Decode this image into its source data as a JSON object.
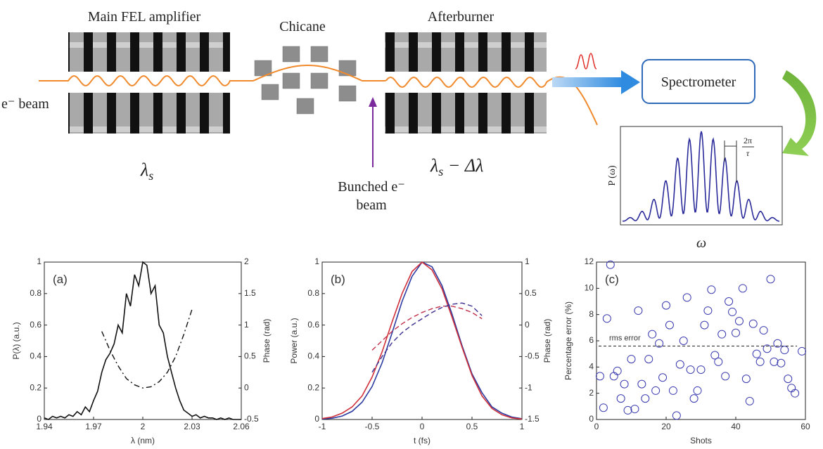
{
  "diagram": {
    "main_fel": "Main FEL amplifier",
    "chicane": "Chicane",
    "afterburner": "Afterburner",
    "e_beam": "e⁻ beam",
    "lambda_main": {
      "symbol": "λ",
      "subscript": "s"
    },
    "lambda_after": {
      "symbol": "λ",
      "subscript": "s",
      "suffix": " − Δλ"
    },
    "bunched": [
      "Bunched e⁻",
      "beam"
    ],
    "spectrometer": "Spectrometer",
    "inset_ylabel": "P (ω)",
    "inset_xlabel": "ω",
    "spacing": {
      "numerator": "2π",
      "denominator": "τ"
    }
  },
  "chart_data": [
    {
      "type": "line",
      "panel_label": "(a)",
      "xlabel": "λ (nm)",
      "ylabel": "P(λ) (a.u.)",
      "y2label": "Phase (rad)",
      "xlim": [
        1.94,
        2.06
      ],
      "xticks": [
        1.94,
        1.97,
        2,
        2.03,
        2.06
      ],
      "ylim": [
        0,
        1
      ],
      "yticks": [
        0,
        0.2,
        0.4,
        0.6,
        0.8,
        1
      ],
      "y2lim": [
        -0.5,
        2
      ],
      "y2ticks": [
        -0.5,
        0,
        0.5,
        1,
        1.5,
        2
      ],
      "series": [
        {
          "color": "#111111",
          "style": "solid",
          "x": [
            1.94,
            1.9425,
            1.945,
            1.9475,
            1.95,
            1.9525,
            1.955,
            1.9575,
            1.96,
            1.9625,
            1.965,
            1.9675,
            1.97,
            1.9725,
            1.975,
            1.9775,
            1.98,
            1.9825,
            1.985,
            1.9875,
            1.99,
            1.9925,
            1.995,
            1.9975,
            2,
            2.0025,
            2.005,
            2.0075,
            2.01,
            2.0125,
            2.015,
            2.0175,
            2.02,
            2.0225,
            2.025,
            2.0275,
            2.03,
            2.0325,
            2.035,
            2.0375,
            2.04,
            2.0425,
            2.045,
            2.0475,
            2.05,
            2.0525,
            2.055,
            2.0575,
            2.06
          ],
          "values": [
            0.01,
            0,
            0.02,
            0.01,
            0.02,
            0.01,
            0.03,
            0.02,
            0.05,
            0.03,
            0.08,
            0.05,
            0.12,
            0.18,
            0.3,
            0.38,
            0.42,
            0.48,
            0.6,
            0.55,
            0.8,
            0.72,
            0.92,
            0.85,
            1,
            0.98,
            0.8,
            0.85,
            0.6,
            0.55,
            0.4,
            0.3,
            0.2,
            0.12,
            0.06,
            0.04,
            0.02,
            0.03,
            0.01,
            0.02,
            0.01,
            0.01,
            0,
            0.01,
            0,
            0.01,
            0,
            0,
            0
          ]
        },
        {
          "color": "#111111",
          "style": "dashdot",
          "axis": "y2",
          "x": [
            1.975,
            1.98,
            1.985,
            1.99,
            1.995,
            2,
            2.005,
            2.01,
            2.015,
            2.02,
            2.025,
            2.03
          ],
          "values": [
            0.9,
            0.6,
            0.35,
            0.15,
            0.05,
            0,
            0.02,
            0.1,
            0.25,
            0.5,
            0.85,
            1.25
          ]
        }
      ]
    },
    {
      "type": "line",
      "panel_label": "(b)",
      "xlabel": "t (fs)",
      "ylabel": "Power (a.u.)",
      "y2label": "Phase (rad)",
      "xlim": [
        -1,
        1
      ],
      "xticks": [
        -1,
        -0.5,
        0,
        0.5,
        1
      ],
      "ylim": [
        0,
        1
      ],
      "yticks": [
        0,
        0.2,
        0.4,
        0.6,
        0.8,
        1
      ],
      "y2lim": [
        -1.5,
        1
      ],
      "y2ticks": [
        -1.5,
        -1,
        -0.5,
        0,
        0.5,
        1
      ],
      "series": [
        {
          "color": "#2b3aa0",
          "style": "solid",
          "x": [
            -1,
            -0.9,
            -0.8,
            -0.7,
            -0.6,
            -0.5,
            -0.4,
            -0.3,
            -0.2,
            -0.1,
            0,
            0.1,
            0.2,
            0.3,
            0.4,
            0.5,
            0.6,
            0.7,
            0.8,
            0.9,
            1
          ],
          "values": [
            0.003,
            0.008,
            0.022,
            0.052,
            0.11,
            0.21,
            0.36,
            0.55,
            0.75,
            0.91,
            1,
            0.97,
            0.85,
            0.67,
            0.47,
            0.29,
            0.17,
            0.08,
            0.04,
            0.015,
            0.005
          ]
        },
        {
          "color": "#d0303a",
          "style": "solid",
          "x": [
            -1,
            -0.9,
            -0.8,
            -0.7,
            -0.6,
            -0.5,
            -0.4,
            -0.3,
            -0.2,
            -0.1,
            0,
            0.1,
            0.2,
            0.3,
            0.4,
            0.5,
            0.6,
            0.7,
            0.8,
            0.9,
            1
          ],
          "values": [
            0.006,
            0.016,
            0.04,
            0.08,
            0.15,
            0.27,
            0.43,
            0.62,
            0.8,
            0.94,
            1,
            0.95,
            0.83,
            0.65,
            0.46,
            0.28,
            0.15,
            0.07,
            0.03,
            0.01,
            0.003
          ]
        },
        {
          "color": "#c0304a",
          "style": "dashed",
          "axis": "y2",
          "x": [
            -0.5,
            -0.4,
            -0.3,
            -0.2,
            -0.1,
            0,
            0.1,
            0.2,
            0.3,
            0.4,
            0.5,
            0.6
          ],
          "values": [
            -0.4,
            -0.25,
            -0.1,
            0.02,
            0.12,
            0.2,
            0.26,
            0.3,
            0.3,
            0.26,
            0.2,
            0.1
          ]
        },
        {
          "color": "#3a2f8f",
          "style": "dashed",
          "axis": "y2",
          "x": [
            -0.5,
            -0.4,
            -0.3,
            -0.2,
            -0.1,
            0,
            0.1,
            0.2,
            0.3,
            0.4,
            0.5,
            0.6
          ],
          "values": [
            -0.75,
            -0.5,
            -0.28,
            -0.12,
            0,
            0.1,
            0.2,
            0.28,
            0.33,
            0.35,
            0.3,
            0.15
          ]
        }
      ]
    },
    {
      "type": "scatter",
      "panel_label": "(c)",
      "xlabel": "Shots",
      "ylabel": "Percentage error (%)",
      "xlim": [
        0,
        60
      ],
      "xticks": [
        0,
        20,
        40,
        60
      ],
      "ylim": [
        0,
        12
      ],
      "yticks": [
        0,
        2,
        4,
        6,
        8,
        10,
        12
      ],
      "rms_error": {
        "label": "rms error",
        "value": 5.6
      },
      "series": [
        {
          "color": "#3b3bb0",
          "x": [
            1,
            2,
            3,
            4,
            5,
            6,
            7,
            8,
            9,
            10,
            11,
            12,
            13,
            14,
            15,
            16,
            17,
            18,
            19,
            20,
            21,
            22,
            23,
            24,
            25,
            26,
            27,
            28,
            29,
            30,
            31,
            32,
            33,
            34,
            35,
            36,
            37,
            38,
            39,
            40,
            41,
            42,
            43,
            44,
            45,
            46,
            47,
            48,
            49,
            50,
            51,
            52,
            53,
            54,
            55,
            56,
            57,
            59
          ],
          "values": [
            3.3,
            0.9,
            7.7,
            11.8,
            3.3,
            3.7,
            1.6,
            2.7,
            0.7,
            4.6,
            0.8,
            8.3,
            2.7,
            1.6,
            4.6,
            6.5,
            2.2,
            5.8,
            3.2,
            8.7,
            7.2,
            2.2,
            0.3,
            4.2,
            6,
            9.3,
            3.8,
            1.6,
            2.2,
            3.8,
            7.2,
            8.3,
            9.9,
            4.9,
            4.4,
            6.5,
            3.3,
            9,
            8.2,
            6.6,
            7.5,
            10,
            3.1,
            1.4,
            7.3,
            5,
            4.4,
            6.8,
            5.4,
            10.7,
            4.4,
            5.8,
            4.3,
            5.3,
            3.1,
            2.4,
            2,
            5.2
          ]
        }
      ]
    }
  ]
}
